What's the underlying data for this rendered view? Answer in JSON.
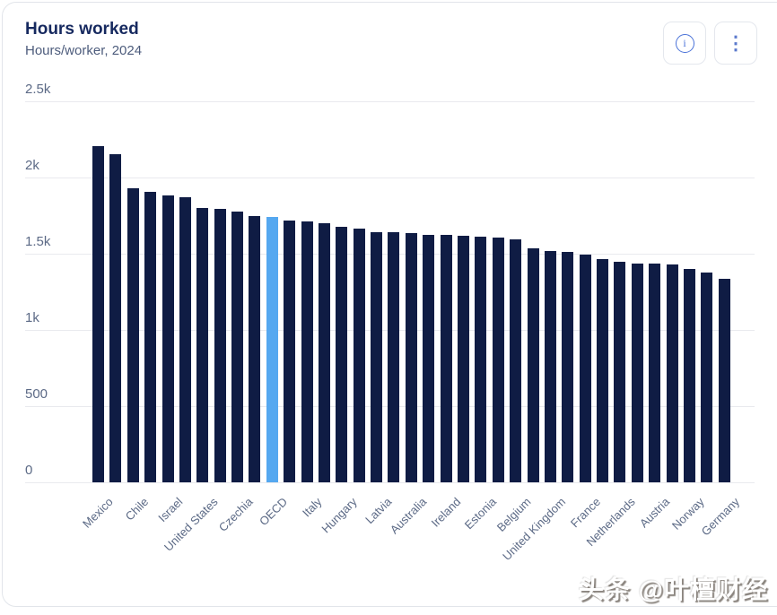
{
  "header": {
    "title": "Hours worked",
    "subtitle": "Hours/worker, 2024"
  },
  "toolbar": {
    "info_icon_label": "i",
    "kebab_icon_label": "⋮"
  },
  "watermark": {
    "text": "头条 @叶檀财经"
  },
  "colors": {
    "bar": "#0f1c44",
    "highlight": "#55a8f0",
    "title": "#16295f",
    "subtitle": "#4d5c7c",
    "axis_label": "#5c6a86",
    "gridline": "#e9eaee",
    "button_icon": "#4a72d8",
    "card_border": "#e2e5ea"
  },
  "chart_data": {
    "type": "bar",
    "title": "Hours worked",
    "subtitle": "Hours/worker, 2024",
    "unit": "hours per worker per year",
    "categories": [
      "Mexico",
      "",
      "Chile",
      "",
      "Israel",
      "",
      "United States",
      "",
      "Czechia",
      "",
      "OECD",
      "",
      "Italy",
      "",
      "Hungary",
      "",
      "Latvia",
      "",
      "Australia",
      "",
      "Ireland",
      "",
      "Estonia",
      "",
      "Belgium",
      "",
      "United Kingdom",
      "",
      "France",
      "",
      "Netherlands",
      "",
      "Austria",
      "",
      "Norway",
      "",
      "Germany"
    ],
    "values": [
      2206,
      2153,
      1929,
      1906,
      1882,
      1870,
      1800,
      1794,
      1774,
      1745,
      1739,
      1719,
      1713,
      1702,
      1676,
      1662,
      1642,
      1639,
      1635,
      1626,
      1622,
      1617,
      1609,
      1603,
      1592,
      1534,
      1520,
      1510,
      1495,
      1465,
      1447,
      1435,
      1433,
      1427,
      1400,
      1378,
      1333
    ],
    "highlight_index": 10,
    "highlight_category": "OECD",
    "label_every": 2,
    "grid": "horizontal",
    "legend": "none",
    "ylim": [
      0,
      2500
    ],
    "y_ticks": [
      {
        "v": 0,
        "label": "0"
      },
      {
        "v": 500,
        "label": "500"
      },
      {
        "v": 1000,
        "label": "1k"
      },
      {
        "v": 1500,
        "label": "1.5k"
      },
      {
        "v": 2000,
        "label": "2k"
      },
      {
        "v": 2500,
        "label": "2.5k"
      }
    ]
  }
}
